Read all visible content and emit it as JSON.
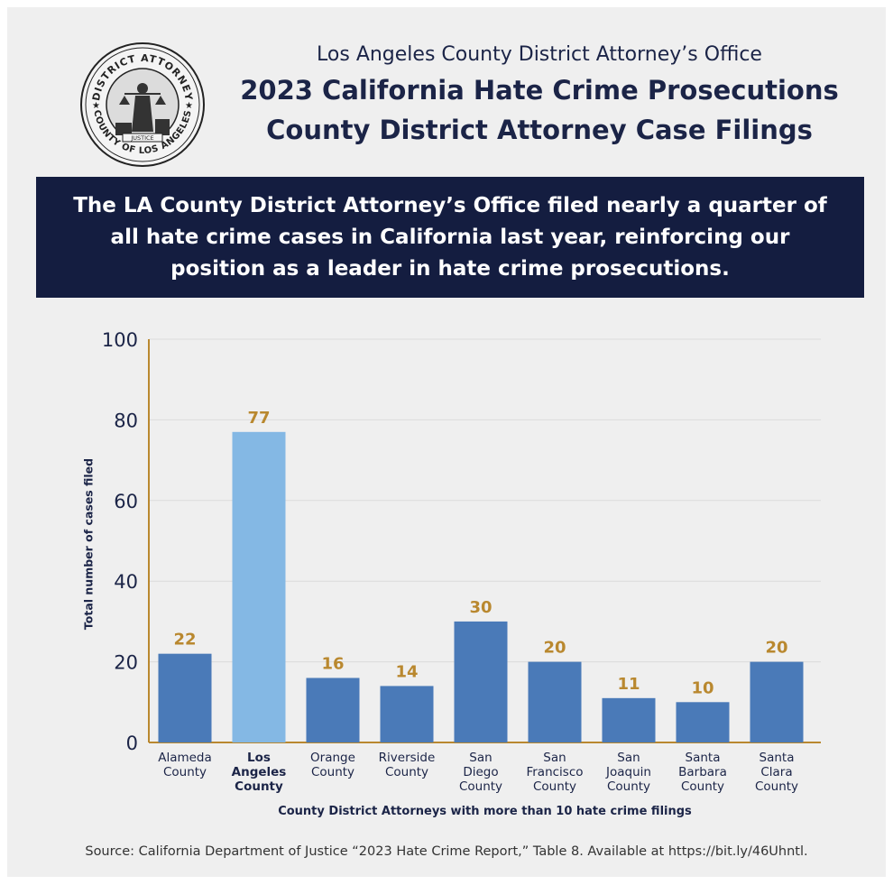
{
  "header": {
    "office": "Los Angeles County District Attorney’s Office",
    "title_line1": "2023 California Hate Crime Prosecutions",
    "title_line2": "County District Attorney Case Filings"
  },
  "seal": {
    "text_top": "DISTRICT ATTORNEY",
    "text_bottom": "COUNTY OF LOS ANGELES",
    "ribbon": "JUSTICE"
  },
  "banner": {
    "text": "The LA County District Attorney’s Office filed nearly a quarter of all hate crime cases in California last year, reinforcing our position as a leader in hate crime prosecutions."
  },
  "colors": {
    "bar": "#4a7ab8",
    "highlight_bar": "#84b8e4",
    "value_label": "#b9882f",
    "axis": "#b9882f",
    "text": "#1b2447"
  },
  "chart_data": {
    "type": "bar",
    "categories": [
      [
        "Alameda",
        "County"
      ],
      [
        "Los",
        "Angeles",
        "County"
      ],
      [
        "Orange",
        "County"
      ],
      [
        "Riverside",
        "County"
      ],
      [
        "San",
        "Diego",
        "County"
      ],
      [
        "San",
        "Francisco",
        "County"
      ],
      [
        "San",
        "Joaquin",
        "County"
      ],
      [
        "Santa",
        "Barbara",
        "County"
      ],
      [
        "Santa",
        "Clara",
        "County"
      ]
    ],
    "values": [
      22,
      77,
      16,
      14,
      30,
      20,
      11,
      10,
      20
    ],
    "highlight_index": 1,
    "ylim": [
      0,
      100
    ],
    "yticks": [
      0,
      20,
      40,
      60,
      80,
      100
    ],
    "xlabel": "County District Attorneys with more than 10 hate crime filings",
    "ylabel": "Total number of cases filed",
    "grid": true
  },
  "source": "Source: California Department of Justice “2023 Hate Crime Report,” Table 8. Available at https://bit.ly/46Uhntl."
}
